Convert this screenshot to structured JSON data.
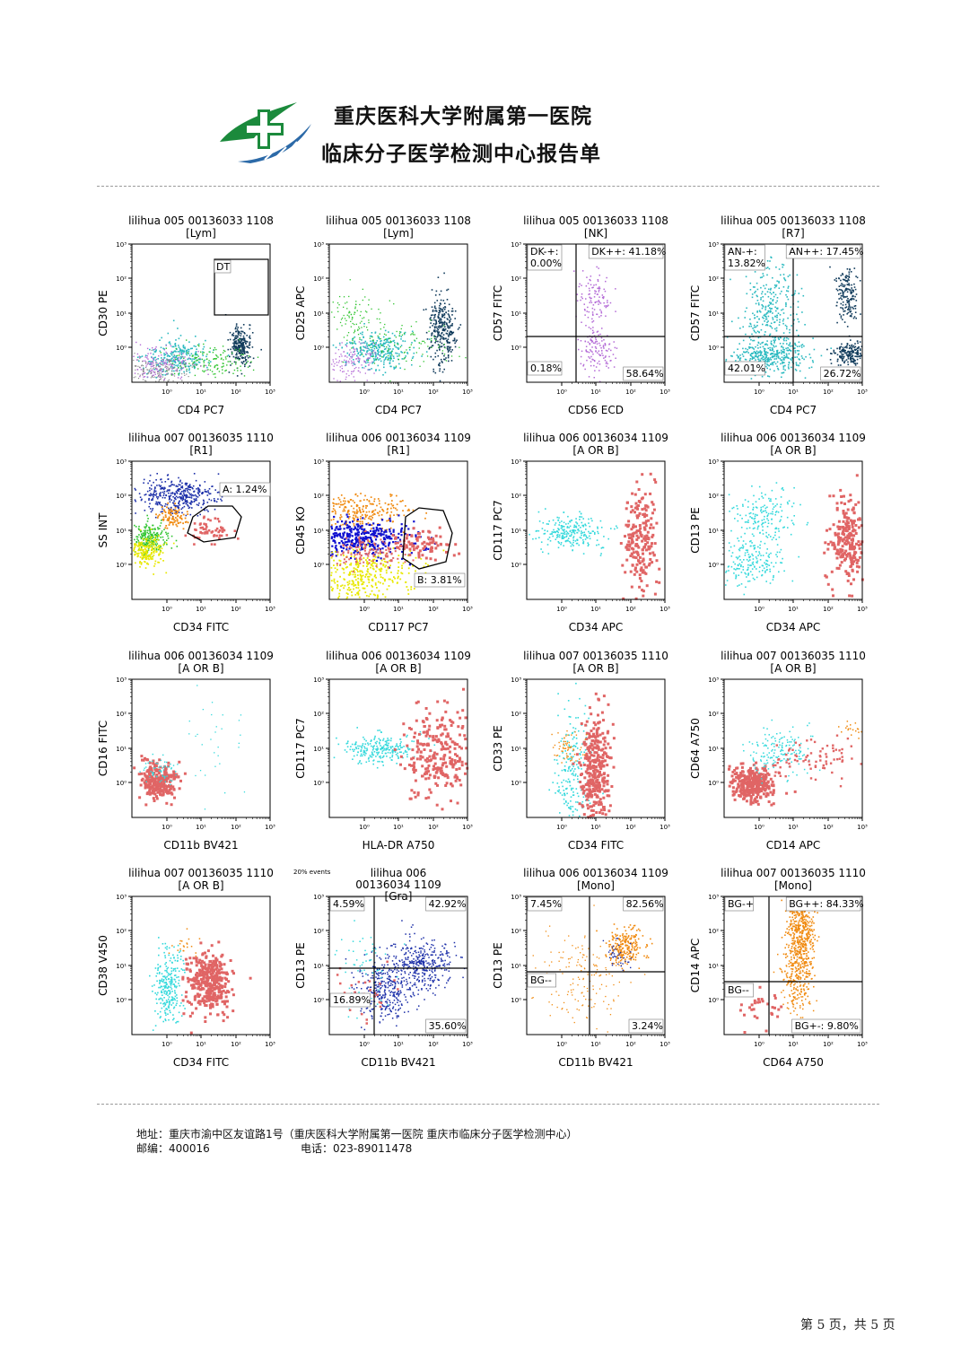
{
  "header": {
    "hospital_name": "重庆医科大学附属第一医院",
    "report_name": "临床分子医学检测中心报告单",
    "logo_icon": "hospital-cross-logo-icon",
    "colors": {
      "green": "#1b8a3c",
      "blue": "#2c6aa8"
    }
  },
  "plots": [
    {
      "title": "lilihua 005 00136033 1108",
      "gate": "[Lym]",
      "xlabel": "CD4 PC7",
      "ylabel": "CD30 PE",
      "boxes": [
        {
          "label": "DT"
        }
      ]
    },
    {
      "title": "lilihua 005 00136033 1108",
      "gate": "[Lym]",
      "xlabel": "CD4 PC7",
      "ylabel": "CD25 APC"
    },
    {
      "title": "lilihua 005 00136033 1108",
      "gate": "[NK]",
      "xlabel": "CD56 ECD",
      "ylabel": "CD57 FITC",
      "quadrant_labels": {
        "ul": "DK-+: 0.00%",
        "ur": "DK++: 41.18%",
        "ll": "0.18%",
        "lr": "58.64%"
      }
    },
    {
      "title": "lilihua 005 00136033 1108",
      "gate": "[R7]",
      "xlabel": "CD4 PC7",
      "ylabel": "CD57 FITC",
      "quadrant_labels": {
        "ul": "AN-+: 13.82%",
        "ur": "AN++: 17.45%",
        "ll": "42.01%",
        "lr": "26.72%"
      }
    },
    {
      "title": "lilihua 007 00136035 1110",
      "gate": "[R1]",
      "xlabel": "CD34 FITC",
      "ylabel": "SS INT",
      "region_label": "A: 1.24%"
    },
    {
      "title": "lilihua 006 00136034 1109",
      "gate": "[R1]",
      "xlabel": "CD117 PC7",
      "ylabel": "CD45 KO",
      "region_label": "B: 3.81%"
    },
    {
      "title": "lilihua 006 00136034 1109",
      "gate": "[A OR B]",
      "xlabel": "CD34 APC",
      "ylabel": "CD117 PC7"
    },
    {
      "title": "lilihua 006 00136034 1109",
      "gate": "[A OR B]",
      "xlabel": "CD34 APC",
      "ylabel": "CD13 PE"
    },
    {
      "title": "lilihua 006 00136034 1109",
      "gate": "[A OR B]",
      "xlabel": "CD11b BV421",
      "ylabel": "CD16 FITC"
    },
    {
      "title": "lilihua 006 00136034 1109",
      "gate": "[A OR B]",
      "xlabel": "HLA-DR A750",
      "ylabel": "CD117 PC7"
    },
    {
      "title": "lilihua 007 00136035 1110",
      "gate": "[A OR B]",
      "xlabel": "CD34 FITC",
      "ylabel": "CD33 PE"
    },
    {
      "title": "lilihua 007 00136035 1110",
      "gate": "[A OR B]",
      "xlabel": "CD14 APC",
      "ylabel": "CD64 A750"
    },
    {
      "title": "lilihua 007 00136035 1110",
      "gate": "[A OR B]",
      "xlabel": "CD34 FITC",
      "ylabel": "CD38 V450"
    },
    {
      "title": "lilihua 006",
      "title2": "00136034 1109",
      "gate": "[Gra]",
      "xlabel": "CD11b BV421",
      "ylabel": "CD13 PE",
      "note": "20% events",
      "quadrant_labels": {
        "ul": "4.59%",
        "ur": "42.92%",
        "ll": "16.89%",
        "lr": "35.60%"
      }
    },
    {
      "title": "lilihua 006 00136034 1109",
      "gate": "[Mono]",
      "xlabel": "CD11b BV421",
      "ylabel": "CD13 PE",
      "quadrant_labels": {
        "ul": "7.45%",
        "ur": "82.56%",
        "ll": "BG--",
        "lr": "3.24%"
      }
    },
    {
      "title": "lilihua 007 00136035 1110",
      "gate": "[Mono]",
      "xlabel": "CD64 A750",
      "ylabel": "CD14 APC",
      "quadrant_labels": {
        "ul": "BG-+",
        "ur": "BG++: 84.33%",
        "ll": "BG--",
        "lr": "BG+-: 9.80%"
      }
    }
  ],
  "footer": {
    "address": "地址：重庆市渝中区友谊路1号（重庆医科大学附属第一医院 重庆市临床分子医学检测中心）",
    "postcode": "邮编：400016",
    "phone": "电话：023-89011478"
  },
  "page_number": "第 5 页，共 5 页"
}
